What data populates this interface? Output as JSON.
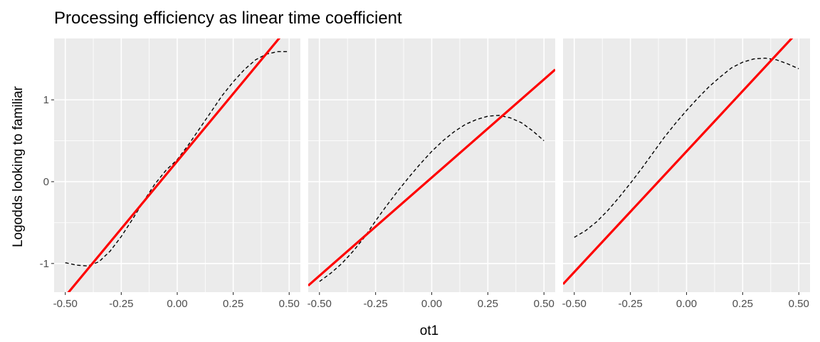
{
  "chart_data": {
    "type": "line",
    "title": "Processing efficiency as linear time coefficient",
    "xlabel": "ot1",
    "ylabel": "Logodds looking to familiar",
    "xlim": [
      -0.55,
      0.55
    ],
    "ylim": [
      -1.35,
      1.75
    ],
    "x_ticks": [
      -0.5,
      -0.25,
      0.0,
      0.25,
      0.5
    ],
    "x_tick_labels": [
      "-0.50",
      "-0.25",
      "0.00",
      "0.25",
      "0.50"
    ],
    "y_ticks": [
      -1,
      0,
      1
    ],
    "y_tick_labels": [
      "-1",
      "0",
      "1"
    ],
    "grid": true,
    "legend": "none",
    "colors": {
      "panel_bg": "#ebebeb",
      "grid": "#ffffff",
      "linear_fit": "#ff0000",
      "curve": "#000000"
    },
    "panels": [
      {
        "linear_fit": {
          "intercept": 0.25,
          "slope": 3.3
        },
        "curve": {
          "x": [
            -0.5,
            -0.45,
            -0.4,
            -0.35,
            -0.3,
            -0.25,
            -0.2,
            -0.15,
            -0.1,
            -0.05,
            0.0,
            0.05,
            0.1,
            0.15,
            0.2,
            0.25,
            0.3,
            0.35,
            0.4,
            0.45,
            0.5
          ],
          "y": [
            -0.99,
            -1.02,
            -1.03,
            -0.98,
            -0.85,
            -0.67,
            -0.46,
            -0.24,
            -0.03,
            0.14,
            0.27,
            0.45,
            0.65,
            0.85,
            1.05,
            1.22,
            1.37,
            1.49,
            1.56,
            1.59,
            1.59
          ]
        }
      },
      {
        "linear_fit": {
          "intercept": 0.05,
          "slope": 2.4
        },
        "curve": {
          "x": [
            -0.5,
            -0.45,
            -0.4,
            -0.35,
            -0.3,
            -0.25,
            -0.2,
            -0.15,
            -0.1,
            -0.05,
            0.0,
            0.05,
            0.1,
            0.15,
            0.2,
            0.25,
            0.3,
            0.35,
            0.4,
            0.45,
            0.5
          ],
          "y": [
            -1.22,
            -1.12,
            -1.0,
            -0.85,
            -0.68,
            -0.48,
            -0.29,
            -0.11,
            0.06,
            0.22,
            0.37,
            0.5,
            0.61,
            0.7,
            0.76,
            0.8,
            0.81,
            0.78,
            0.72,
            0.62,
            0.5
          ]
        }
      },
      {
        "linear_fit": {
          "intercept": 0.37,
          "slope": 2.95
        },
        "curve": {
          "x": [
            -0.5,
            -0.45,
            -0.4,
            -0.35,
            -0.3,
            -0.25,
            -0.2,
            -0.15,
            -0.1,
            -0.05,
            0.0,
            0.05,
            0.1,
            0.15,
            0.2,
            0.25,
            0.3,
            0.35,
            0.4,
            0.45,
            0.5
          ],
          "y": [
            -0.68,
            -0.6,
            -0.49,
            -0.35,
            -0.19,
            -0.02,
            0.16,
            0.35,
            0.54,
            0.71,
            0.87,
            1.02,
            1.16,
            1.28,
            1.39,
            1.46,
            1.5,
            1.51,
            1.49,
            1.44,
            1.38
          ]
        }
      }
    ]
  }
}
